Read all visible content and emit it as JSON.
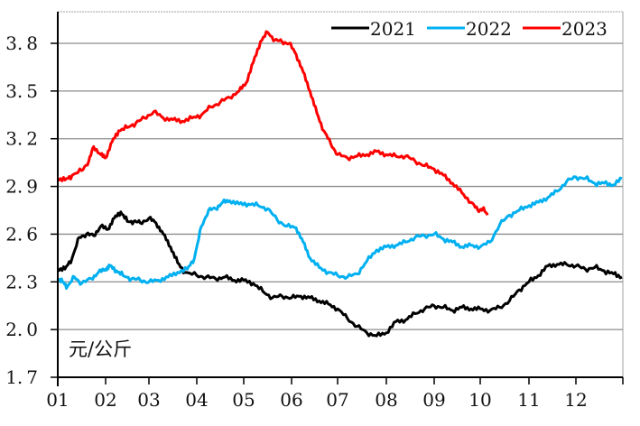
{
  "chart_data": {
    "type": "line",
    "title": "",
    "xlabel": "",
    "ylabel": "元/公斤",
    "unit_label": "元/公斤",
    "ylim": [
      1.7,
      4.1
    ],
    "yticks": [
      "1.7",
      "2.0",
      "2.3",
      "2.6",
      "2.9",
      "3.2",
      "3.5",
      "3.8"
    ],
    "xticks": [
      "01",
      "02",
      "03",
      "04",
      "05",
      "06",
      "07",
      "08",
      "09",
      "10",
      "11",
      "12"
    ],
    "grid": "horizontal",
    "legend_position": "top-right",
    "series": [
      {
        "name": "2021",
        "color": "#000000",
        "points": [
          [
            1.0,
            2.38
          ],
          [
            1.15,
            2.38
          ],
          [
            1.3,
            2.45
          ],
          [
            1.45,
            2.58
          ],
          [
            1.6,
            2.6
          ],
          [
            1.75,
            2.59
          ],
          [
            1.9,
            2.65
          ],
          [
            2.05,
            2.63
          ],
          [
            2.2,
            2.7
          ],
          [
            2.35,
            2.74
          ],
          [
            2.5,
            2.68
          ],
          [
            2.65,
            2.68
          ],
          [
            2.8,
            2.67
          ],
          [
            3.0,
            2.7
          ],
          [
            3.15,
            2.67
          ],
          [
            3.3,
            2.6
          ],
          [
            3.45,
            2.52
          ],
          [
            3.6,
            2.42
          ],
          [
            3.75,
            2.36
          ],
          [
            4.0,
            2.34
          ],
          [
            4.2,
            2.33
          ],
          [
            4.4,
            2.32
          ],
          [
            4.6,
            2.33
          ],
          [
            4.8,
            2.31
          ],
          [
            5.0,
            2.31
          ],
          [
            5.2,
            2.29
          ],
          [
            5.4,
            2.24
          ],
          [
            5.6,
            2.2
          ],
          [
            5.8,
            2.21
          ],
          [
            6.0,
            2.2
          ],
          [
            6.2,
            2.21
          ],
          [
            6.4,
            2.2
          ],
          [
            6.6,
            2.18
          ],
          [
            6.8,
            2.16
          ],
          [
            7.0,
            2.13
          ],
          [
            7.2,
            2.07
          ],
          [
            7.4,
            2.02
          ],
          [
            7.6,
            1.98
          ],
          [
            7.8,
            1.96
          ],
          [
            8.0,
            1.98
          ],
          [
            8.2,
            2.05
          ],
          [
            8.4,
            2.06
          ],
          [
            8.6,
            2.1
          ],
          [
            8.8,
            2.13
          ],
          [
            9.0,
            2.15
          ],
          [
            9.2,
            2.14
          ],
          [
            9.4,
            2.12
          ],
          [
            9.6,
            2.14
          ],
          [
            9.8,
            2.13
          ],
          [
            10.0,
            2.13
          ],
          [
            10.2,
            2.12
          ],
          [
            10.4,
            2.14
          ],
          [
            10.6,
            2.18
          ],
          [
            10.8,
            2.25
          ],
          [
            11.0,
            2.3
          ],
          [
            11.2,
            2.34
          ],
          [
            11.4,
            2.4
          ],
          [
            11.6,
            2.41
          ],
          [
            11.8,
            2.41
          ],
          [
            12.0,
            2.4
          ],
          [
            12.2,
            2.38
          ],
          [
            12.4,
            2.39
          ],
          [
            12.6,
            2.37
          ],
          [
            12.8,
            2.35
          ],
          [
            12.98,
            2.33
          ]
        ]
      },
      {
        "name": "2022",
        "color": "#00B0F0",
        "points": [
          [
            1.0,
            2.32
          ],
          [
            1.1,
            2.3
          ],
          [
            1.2,
            2.27
          ],
          [
            1.35,
            2.33
          ],
          [
            1.5,
            2.29
          ],
          [
            1.7,
            2.32
          ],
          [
            1.85,
            2.36
          ],
          [
            2.0,
            2.38
          ],
          [
            2.1,
            2.4
          ],
          [
            2.25,
            2.37
          ],
          [
            2.4,
            2.34
          ],
          [
            2.6,
            2.32
          ],
          [
            2.8,
            2.31
          ],
          [
            3.0,
            2.3
          ],
          [
            3.2,
            2.31
          ],
          [
            3.4,
            2.33
          ],
          [
            3.6,
            2.36
          ],
          [
            3.8,
            2.38
          ],
          [
            3.95,
            2.45
          ],
          [
            4.1,
            2.65
          ],
          [
            4.25,
            2.75
          ],
          [
            4.4,
            2.76
          ],
          [
            4.55,
            2.8
          ],
          [
            4.7,
            2.81
          ],
          [
            4.9,
            2.79
          ],
          [
            5.1,
            2.79
          ],
          [
            5.3,
            2.78
          ],
          [
            5.5,
            2.76
          ],
          [
            5.7,
            2.69
          ],
          [
            5.9,
            2.65
          ],
          [
            6.1,
            2.64
          ],
          [
            6.25,
            2.55
          ],
          [
            6.4,
            2.45
          ],
          [
            6.6,
            2.39
          ],
          [
            6.8,
            2.36
          ],
          [
            7.0,
            2.34
          ],
          [
            7.2,
            2.33
          ],
          [
            7.4,
            2.35
          ],
          [
            7.6,
            2.43
          ],
          [
            7.8,
            2.5
          ],
          [
            8.0,
            2.52
          ],
          [
            8.2,
            2.53
          ],
          [
            8.4,
            2.55
          ],
          [
            8.6,
            2.58
          ],
          [
            8.8,
            2.59
          ],
          [
            9.0,
            2.6
          ],
          [
            9.2,
            2.57
          ],
          [
            9.4,
            2.55
          ],
          [
            9.6,
            2.52
          ],
          [
            9.8,
            2.53
          ],
          [
            10.0,
            2.52
          ],
          [
            10.2,
            2.55
          ],
          [
            10.4,
            2.66
          ],
          [
            10.6,
            2.72
          ],
          [
            10.8,
            2.75
          ],
          [
            11.0,
            2.78
          ],
          [
            11.2,
            2.8
          ],
          [
            11.4,
            2.83
          ],
          [
            11.6,
            2.87
          ],
          [
            11.8,
            2.93
          ],
          [
            12.0,
            2.96
          ],
          [
            12.2,
            2.95
          ],
          [
            12.4,
            2.92
          ],
          [
            12.6,
            2.92
          ],
          [
            12.8,
            2.91
          ],
          [
            12.98,
            2.95
          ]
        ]
      },
      {
        "name": "2023",
        "color": "#FF0000",
        "points": [
          [
            1.0,
            2.95
          ],
          [
            1.15,
            2.94
          ],
          [
            1.3,
            2.97
          ],
          [
            1.5,
            3.0
          ],
          [
            1.65,
            3.06
          ],
          [
            1.75,
            3.15
          ],
          [
            1.9,
            3.1
          ],
          [
            2.0,
            3.08
          ],
          [
            2.15,
            3.18
          ],
          [
            2.3,
            3.25
          ],
          [
            2.5,
            3.27
          ],
          [
            2.7,
            3.3
          ],
          [
            2.9,
            3.33
          ],
          [
            3.1,
            3.37
          ],
          [
            3.3,
            3.33
          ],
          [
            3.5,
            3.32
          ],
          [
            3.7,
            3.31
          ],
          [
            3.9,
            3.33
          ],
          [
            4.1,
            3.35
          ],
          [
            4.3,
            3.4
          ],
          [
            4.5,
            3.43
          ],
          [
            4.7,
            3.46
          ],
          [
            4.9,
            3.5
          ],
          [
            5.05,
            3.55
          ],
          [
            5.2,
            3.68
          ],
          [
            5.35,
            3.81
          ],
          [
            5.5,
            3.87
          ],
          [
            5.65,
            3.82
          ],
          [
            5.8,
            3.81
          ],
          [
            5.95,
            3.8
          ],
          [
            6.1,
            3.73
          ],
          [
            6.25,
            3.62
          ],
          [
            6.4,
            3.5
          ],
          [
            6.55,
            3.36
          ],
          [
            6.7,
            3.25
          ],
          [
            6.85,
            3.17
          ],
          [
            7.0,
            3.1
          ],
          [
            7.2,
            3.08
          ],
          [
            7.4,
            3.09
          ],
          [
            7.6,
            3.1
          ],
          [
            7.8,
            3.12
          ],
          [
            8.0,
            3.1
          ],
          [
            8.2,
            3.09
          ],
          [
            8.4,
            3.09
          ],
          [
            8.6,
            3.06
          ],
          [
            8.8,
            3.03
          ],
          [
            9.0,
            3.01
          ],
          [
            9.2,
            2.97
          ],
          [
            9.4,
            2.92
          ],
          [
            9.6,
            2.86
          ],
          [
            9.8,
            2.8
          ],
          [
            9.95,
            2.75
          ],
          [
            10.05,
            2.76
          ],
          [
            10.15,
            2.72
          ]
        ]
      }
    ]
  },
  "legend": {
    "items": [
      {
        "label": "2021",
        "color": "#000000"
      },
      {
        "label": "2022",
        "color": "#00B0F0"
      },
      {
        "label": "2023",
        "color": "#FF0000"
      }
    ]
  },
  "colors": {
    "grid": "#8c8c8c",
    "axis": "#000000",
    "frame": "#c0c0c0"
  }
}
